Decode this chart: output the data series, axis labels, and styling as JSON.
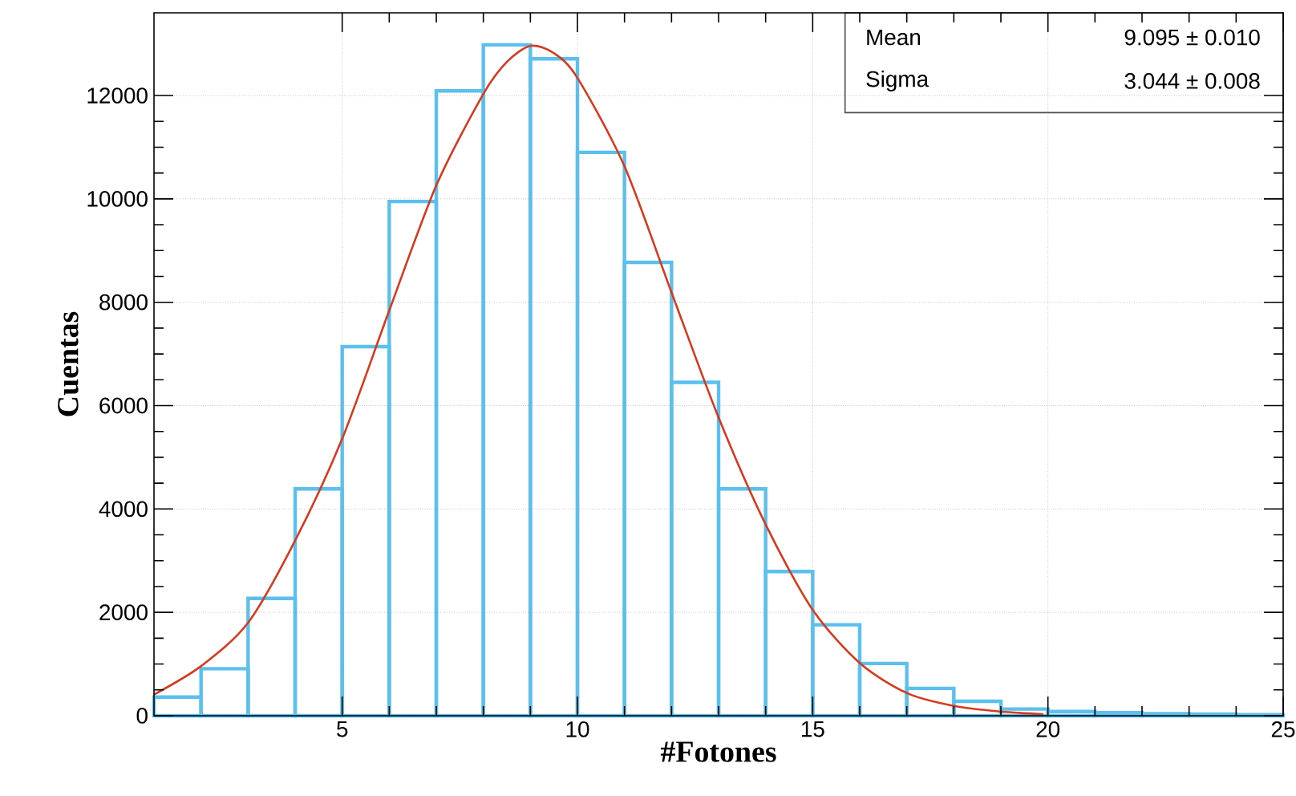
{
  "chart_data": {
    "type": "histogram",
    "xlabel": "#Fotones",
    "ylabel": "Cuentas",
    "bins": [
      1,
      2,
      3,
      4,
      5,
      6,
      7,
      8,
      9,
      10,
      11,
      12,
      13,
      14,
      15,
      16,
      17,
      18,
      19,
      20,
      21,
      22,
      23,
      24,
      25
    ],
    "values": [
      360,
      910,
      2270,
      4390,
      7140,
      9950,
      12090,
      12980,
      12710,
      10900,
      8770,
      6450,
      4390,
      2790,
      1760,
      1010,
      530,
      280,
      130,
      80,
      60,
      40,
      30,
      20
    ],
    "color": "#5bc0ee",
    "series": [
      {
        "type": "line",
        "color": "#d63a1e",
        "x": [
          1,
          2,
          3,
          4,
          5,
          6,
          7,
          8,
          8.5,
          9,
          9.5,
          10,
          11,
          12,
          13,
          14,
          15,
          16,
          17,
          18,
          19,
          19.9
        ],
        "values": [
          410,
          960,
          1800,
          3390,
          5360,
          7840,
          10260,
          12030,
          12650,
          12960,
          12820,
          12340,
          10630,
          8190,
          5770,
          3700,
          2050,
          1020,
          440,
          190,
          80,
          30
        ]
      }
    ],
    "xlim": [
      1,
      25
    ],
    "ylim": [
      0,
      13600
    ],
    "xticks": [
      5,
      10,
      15,
      20,
      25
    ],
    "yticks": [
      0,
      2000,
      4000,
      6000,
      8000,
      10000,
      12000
    ],
    "grid": true,
    "annotations": [
      "Mean",
      "9.095 ± 0.010",
      "Sigma",
      "3.044 ± 0.008"
    ]
  }
}
